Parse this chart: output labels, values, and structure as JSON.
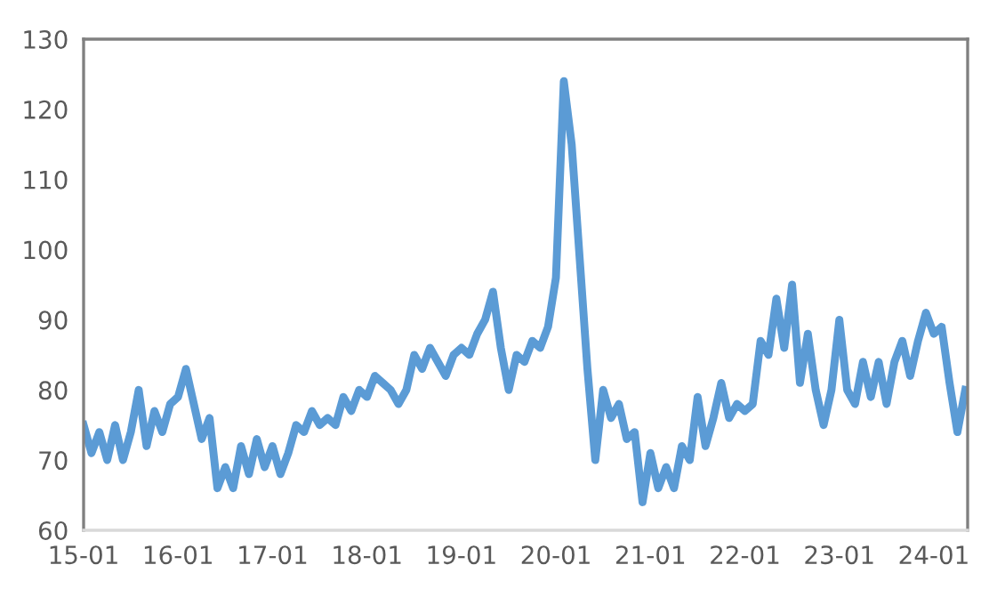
{
  "chart_data": {
    "type": "line",
    "grid": false,
    "legend": false,
    "marker": "none",
    "line_style": "solid",
    "ylim": [
      60,
      130
    ],
    "yticks": [
      60,
      70,
      80,
      90,
      100,
      110,
      120,
      130
    ],
    "categories": [
      "15-01",
      null,
      null,
      null,
      null,
      null,
      null,
      null,
      null,
      null,
      null,
      null,
      "16-01",
      null,
      null,
      null,
      null,
      null,
      null,
      null,
      null,
      null,
      null,
      null,
      "17-01",
      null,
      null,
      null,
      null,
      null,
      null,
      null,
      null,
      null,
      null,
      null,
      "18-01",
      null,
      null,
      null,
      null,
      null,
      null,
      null,
      null,
      null,
      null,
      null,
      "19-01",
      null,
      null,
      null,
      null,
      null,
      null,
      null,
      null,
      null,
      null,
      null,
      "20-01",
      null,
      null,
      null,
      null,
      null,
      null,
      null,
      null,
      null,
      null,
      null,
      "21-01",
      null,
      null,
      null,
      null,
      null,
      null,
      null,
      null,
      null,
      null,
      null,
      "22-01",
      null,
      null,
      null,
      null,
      null,
      null,
      null,
      null,
      null,
      null,
      null,
      "23-01",
      null,
      null,
      null,
      null,
      null,
      null,
      null,
      null,
      null,
      null,
      null,
      "24-01",
      null,
      null,
      null,
      null
    ],
    "series": [
      {
        "color": "#5b9bd5",
        "values": [
          75,
          71,
          74,
          70,
          75,
          70,
          74,
          80,
          72,
          77,
          74,
          78,
          79,
          83,
          78,
          73,
          76,
          66,
          69,
          66,
          72,
          68,
          73,
          69,
          72,
          68,
          71,
          75,
          74,
          77,
          75,
          76,
          75,
          79,
          77,
          80,
          79,
          82,
          81,
          80,
          78,
          80,
          85,
          83,
          86,
          84,
          82,
          85,
          86,
          85,
          88,
          90,
          94,
          86,
          80,
          85,
          84,
          87,
          86,
          89,
          96,
          124,
          115,
          99,
          83,
          70,
          80,
          76,
          78,
          73,
          74,
          64,
          71,
          66,
          69,
          66,
          72,
          70,
          79,
          72,
          76,
          81,
          76,
          78,
          77,
          78,
          87,
          85,
          93,
          86,
          95,
          81,
          88,
          80,
          75,
          80,
          90,
          80,
          78,
          84,
          79,
          84,
          78,
          84,
          87,
          82,
          87,
          91,
          88,
          89,
          81,
          74,
          80
        ]
      }
    ]
  }
}
